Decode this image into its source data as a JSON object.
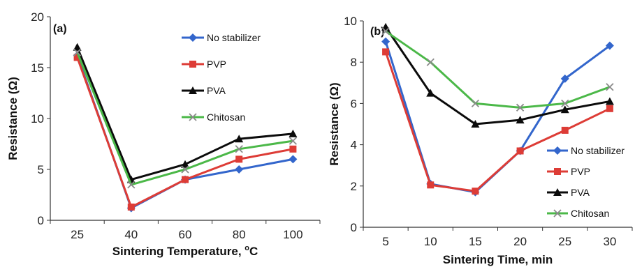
{
  "colors": {
    "No stabilizer": "#3366cc",
    "PVP": "#dd3c36",
    "PVA": "#0b0b0b",
    "Chitosan": "#4bb848"
  },
  "chart_data": [
    {
      "type": "line",
      "panel_label": "(a)",
      "title": "",
      "xlabel": "Sintering Temperature, ",
      "xlabel_sup": "o",
      "xlabel_tail": "C",
      "ylabel": "Resistance (Ω)",
      "categories": [
        "25",
        "40",
        "60",
        "80",
        "100"
      ],
      "ylim": [
        0,
        20
      ],
      "yticks": [
        "0",
        "5",
        "10",
        "15",
        "20"
      ],
      "legend_position": "top-right",
      "series": [
        {
          "name": "No stabilizer",
          "marker": "diamond",
          "values": [
            16.2,
            1.2,
            4.0,
            5.0,
            6.0
          ]
        },
        {
          "name": "PVP",
          "marker": "square",
          "values": [
            16.0,
            1.3,
            4.0,
            6.0,
            7.0
          ]
        },
        {
          "name": "PVA",
          "marker": "triangle",
          "values": [
            17.0,
            4.0,
            5.5,
            8.0,
            8.5
          ]
        },
        {
          "name": "Chitosan",
          "marker": "x",
          "values": [
            16.5,
            3.5,
            5.0,
            7.0,
            7.8
          ]
        }
      ]
    },
    {
      "type": "line",
      "panel_label": "(b)",
      "title": "",
      "xlabel": "Sintering Time, min",
      "ylabel": "Resistance (Ω)",
      "categories": [
        "5",
        "10",
        "15",
        "20",
        "25",
        "30"
      ],
      "ylim": [
        0,
        10
      ],
      "yticks": [
        "0",
        "2",
        "4",
        "6",
        "8",
        "10"
      ],
      "legend_position": "bottom-right",
      "series": [
        {
          "name": "No stabilizer",
          "marker": "diamond",
          "values": [
            9.0,
            2.1,
            1.7,
            3.7,
            7.2,
            8.8
          ]
        },
        {
          "name": "PVP",
          "marker": "square",
          "values": [
            8.5,
            2.05,
            1.75,
            3.7,
            4.7,
            5.75
          ]
        },
        {
          "name": "PVA",
          "marker": "triangle",
          "values": [
            9.7,
            6.5,
            5.0,
            5.2,
            5.7,
            6.1
          ]
        },
        {
          "name": "Chitosan",
          "marker": "x",
          "values": [
            9.5,
            8.0,
            6.0,
            5.8,
            6.0,
            6.8
          ]
        }
      ]
    }
  ]
}
